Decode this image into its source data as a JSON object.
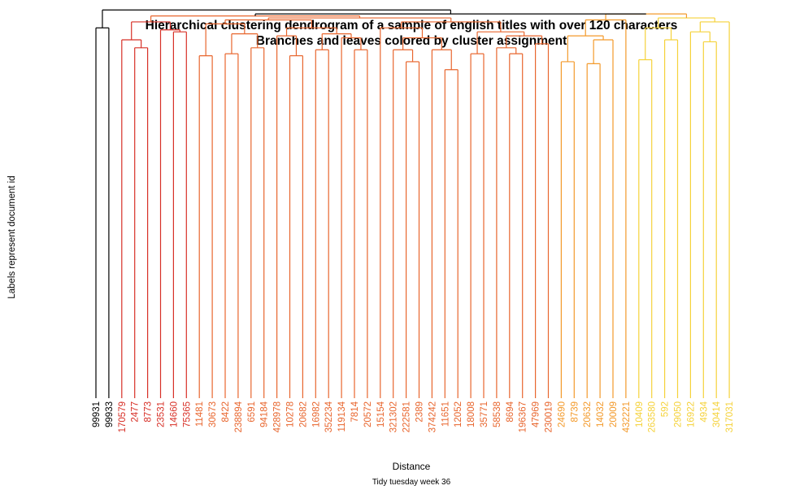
{
  "title": "Hierarchical clustering dendrogram of a sample of english titles with over 120 characters",
  "subtitle": "Branches and leaves colored by cluster assignment",
  "xlabel": "Distance",
  "ylabel": "Labels represent document id",
  "caption": "Tidy tuesday week 36",
  "chart_data": {
    "type": "dendrogram",
    "title": "Hierarchical clustering dendrogram of a sample of english titles with over 120 characters",
    "subtitle": "Branches and leaves colored by cluster assignment",
    "xlabel": "Distance",
    "ylabel": "Labels represent document id",
    "leaves": [
      {
        "id": "99931",
        "color": "#000000"
      },
      {
        "id": "99933",
        "color": "#000000"
      },
      {
        "id": "170579",
        "color": "#d73027"
      },
      {
        "id": "2477",
        "color": "#d73027"
      },
      {
        "id": "8773",
        "color": "#d73027"
      },
      {
        "id": "23531",
        "color": "#d73027"
      },
      {
        "id": "14660",
        "color": "#d73027"
      },
      {
        "id": "75365",
        "color": "#d73027"
      },
      {
        "id": "11481",
        "color": "#e8662e"
      },
      {
        "id": "30673",
        "color": "#e8662e"
      },
      {
        "id": "8422",
        "color": "#e8662e"
      },
      {
        "id": "238894",
        "color": "#e8662e"
      },
      {
        "id": "6591",
        "color": "#e8662e"
      },
      {
        "id": "94184",
        "color": "#e8662e"
      },
      {
        "id": "428978",
        "color": "#e8662e"
      },
      {
        "id": "10278",
        "color": "#e8662e"
      },
      {
        "id": "20682",
        "color": "#e8662e"
      },
      {
        "id": "16982",
        "color": "#e8662e"
      },
      {
        "id": "352234",
        "color": "#e8662e"
      },
      {
        "id": "119134",
        "color": "#e8662e"
      },
      {
        "id": "7814",
        "color": "#e8662e"
      },
      {
        "id": "20572",
        "color": "#e8662e"
      },
      {
        "id": "15154",
        "color": "#e8662e"
      },
      {
        "id": "321302",
        "color": "#e8662e"
      },
      {
        "id": "222581",
        "color": "#e8662e"
      },
      {
        "id": "2389",
        "color": "#e8662e"
      },
      {
        "id": "374242",
        "color": "#e8662e"
      },
      {
        "id": "11651",
        "color": "#e8662e"
      },
      {
        "id": "12052",
        "color": "#e8662e"
      },
      {
        "id": "18008",
        "color": "#e8662e"
      },
      {
        "id": "35771",
        "color": "#e8662e"
      },
      {
        "id": "58538",
        "color": "#e8662e"
      },
      {
        "id": "8694",
        "color": "#e8662e"
      },
      {
        "id": "196367",
        "color": "#e8662e"
      },
      {
        "id": "47969",
        "color": "#e8662e"
      },
      {
        "id": "230019",
        "color": "#e8662e"
      },
      {
        "id": "24690",
        "color": "#f39a2b"
      },
      {
        "id": "8739",
        "color": "#f39a2b"
      },
      {
        "id": "20632",
        "color": "#f39a2b"
      },
      {
        "id": "14032",
        "color": "#f39a2b"
      },
      {
        "id": "20009",
        "color": "#f39a2b"
      },
      {
        "id": "432221",
        "color": "#f39a2b"
      },
      {
        "id": "10409",
        "color": "#f5d23a"
      },
      {
        "id": "263580",
        "color": "#f5d23a"
      },
      {
        "id": "592",
        "color": "#f5d23a"
      },
      {
        "id": "29050",
        "color": "#f5d23a"
      },
      {
        "id": "16922",
        "color": "#f5d23a"
      },
      {
        "id": "4934",
        "color": "#f5d23a"
      },
      {
        "id": "30414",
        "color": "#f5d23a"
      },
      {
        "id": "317031",
        "color": "#f5d23a"
      }
    ],
    "merges": [
      {
        "a": 0,
        "b": 1,
        "height": 0.93,
        "color": "#000000"
      },
      {
        "a": 3,
        "b": 4,
        "height": 0.88,
        "color": "#d73027"
      },
      {
        "a": 2,
        "b": "m1",
        "height": 0.9,
        "color": "#d73027"
      },
      {
        "a": 6,
        "b": 7,
        "height": 0.92,
        "color": "#d73027"
      },
      {
        "a": 5,
        "b": "m3",
        "height": 0.925,
        "color": "#d73027"
      },
      {
        "a": "m2",
        "b": "m4",
        "height": 0.945,
        "color": "#d73027"
      },
      {
        "a": 8,
        "b": 9,
        "height": 0.86,
        "color": "#e8662e"
      },
      {
        "a": 10,
        "b": 11,
        "height": 0.865,
        "color": "#e8662e"
      },
      {
        "a": 12,
        "b": 13,
        "height": 0.88,
        "color": "#e8662e"
      },
      {
        "a": "m7",
        "b": "m8",
        "height": 0.915,
        "color": "#e8662e"
      },
      {
        "a": "m6",
        "b": "m9",
        "height": 0.94,
        "color": "#e8662e"
      },
      {
        "a": 15,
        "b": 16,
        "height": 0.86,
        "color": "#e8662e"
      },
      {
        "a": 14,
        "b": "m11",
        "height": 0.91,
        "color": "#e8662e"
      },
      {
        "a": 17,
        "b": 18,
        "height": 0.875,
        "color": "#e8662e"
      },
      {
        "a": 20,
        "b": 21,
        "height": 0.875,
        "color": "#e8662e"
      },
      {
        "a": 19,
        "b": "m14",
        "height": 0.905,
        "color": "#e8662e"
      },
      {
        "a": "m13",
        "b": "m15",
        "height": 0.915,
        "color": "#e8662e"
      },
      {
        "a": "m12",
        "b": "m16",
        "height": 0.93,
        "color": "#e8662e"
      },
      {
        "a": "m10",
        "b": "m17",
        "height": 0.95,
        "color": "#e8662e"
      },
      {
        "a": 24,
        "b": 25,
        "height": 0.845,
        "color": "#e8662e"
      },
      {
        "a": 23,
        "b": "m19",
        "height": 0.875,
        "color": "#e8662e"
      },
      {
        "a": 27,
        "b": 28,
        "height": 0.825,
        "color": "#e8662e"
      },
      {
        "a": 26,
        "b": "m21",
        "height": 0.875,
        "color": "#e8662e"
      },
      {
        "a": "m20",
        "b": "m22",
        "height": 0.905,
        "color": "#e8662e"
      },
      {
        "a": 22,
        "b": "m23",
        "height": 0.93,
        "color": "#e8662e"
      },
      {
        "a": 29,
        "b": 30,
        "height": 0.865,
        "color": "#e8662e"
      },
      {
        "a": 32,
        "b": 33,
        "height": 0.865,
        "color": "#e8662e"
      },
      {
        "a": 31,
        "b": "m26",
        "height": 0.88,
        "color": "#e8662e"
      },
      {
        "a": 34,
        "b": 35,
        "height": 0.89,
        "color": "#e8662e"
      },
      {
        "a": "m27",
        "b": "m28",
        "height": 0.91,
        "color": "#e8662e"
      },
      {
        "a": "m25",
        "b": "m29",
        "height": 0.92,
        "color": "#e8662e"
      },
      {
        "a": "m24",
        "b": "m30",
        "height": 0.945,
        "color": "#e8662e"
      },
      {
        "a": "m18",
        "b": "m31",
        "height": 0.955,
        "color": "#e8662e"
      },
      {
        "a": "m5",
        "b": "m32",
        "height": 0.96,
        "color": "#e8662e"
      },
      {
        "a": 36,
        "b": 37,
        "height": 0.845,
        "color": "#f39a2b"
      },
      {
        "a": 38,
        "b": 39,
        "height": 0.84,
        "color": "#f39a2b"
      },
      {
        "a": 40,
        "b": "m35",
        "height": 0.9,
        "color": "#f39a2b"
      },
      {
        "a": "m34",
        "b": "m36",
        "height": 0.91,
        "color": "#f39a2b"
      },
      {
        "a": 41,
        "b": "m37",
        "height": 0.95,
        "color": "#f39a2b"
      },
      {
        "a": 42,
        "b": 43,
        "height": 0.85,
        "color": "#f5d23a"
      },
      {
        "a": 44,
        "b": 45,
        "height": 0.9,
        "color": "#f5d23a"
      },
      {
        "a": "m39",
        "b": "m40",
        "height": 0.93,
        "color": "#f5d23a"
      },
      {
        "a": 47,
        "b": 48,
        "height": 0.895,
        "color": "#f5d23a"
      },
      {
        "a": 46,
        "b": "m42",
        "height": 0.92,
        "color": "#f5d23a"
      },
      {
        "a": "m43",
        "b": 49,
        "height": 0.945,
        "color": "#f5d23a"
      },
      {
        "a": "m41",
        "b": "m44",
        "height": 0.955,
        "color": "#f5d23a"
      },
      {
        "a": "m38",
        "b": "m45",
        "height": 0.965,
        "color": "#f39a2b"
      },
      {
        "a": "m33",
        "b": "m46",
        "height": 0.965,
        "color": "#000000"
      },
      {
        "a": "m0",
        "b": "m47",
        "height": 0.975,
        "color": "#000000"
      }
    ],
    "axis": {
      "grid": false,
      "xlim": [
        0,
        1
      ]
    }
  }
}
